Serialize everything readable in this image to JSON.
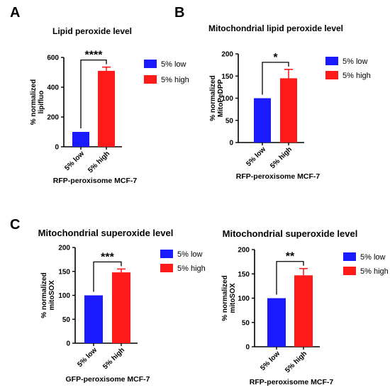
{
  "figure": {
    "panel_labels": [
      "A",
      "B",
      "C"
    ]
  },
  "chart_data": [
    {
      "type": "bar",
      "panel": "A",
      "title": "Lipid peroxide level",
      "ylabel_lines": [
        "% normalized",
        "lipifluo"
      ],
      "xlabel": "RFP-peroxisome MCF-7",
      "categories": [
        "5% low",
        "5% high"
      ],
      "values": [
        100,
        510
      ],
      "errors": [
        0,
        25
      ],
      "colors": [
        "#1a1aff",
        "#ff1a1a"
      ],
      "ylim": [
        0,
        600
      ],
      "yticks": [
        0,
        200,
        400,
        600
      ],
      "significance": "****",
      "legend": [
        "5% low",
        "5% high"
      ]
    },
    {
      "type": "bar",
      "panel": "B",
      "title": "Mitochondrial lipid peroxide level",
      "ylabel_lines": [
        "% normalized",
        "MitoPeDPP"
      ],
      "xlabel": "RFP-peroxisome MCF-7",
      "categories": [
        "5% low",
        "5% high"
      ],
      "values": [
        100,
        145
      ],
      "errors": [
        0,
        20
      ],
      "colors": [
        "#1a1aff",
        "#ff1a1a"
      ],
      "ylim": [
        0,
        200
      ],
      "yticks": [
        0,
        50,
        100,
        150,
        200
      ],
      "significance": "*",
      "legend": [
        "5% low",
        "5% high"
      ]
    },
    {
      "type": "bar",
      "panel": "C1",
      "title": "Mitochondrial superoxide level",
      "ylabel_lines": [
        "% normalized",
        "mitoSOX"
      ],
      "xlabel": "GFP-peroxisome MCF-7",
      "categories": [
        "5% low",
        "5% high"
      ],
      "values": [
        100,
        148
      ],
      "errors": [
        0,
        7
      ],
      "colors": [
        "#1a1aff",
        "#ff1a1a"
      ],
      "ylim": [
        0,
        200
      ],
      "yticks": [
        0,
        50,
        100,
        150,
        200
      ],
      "significance": "***",
      "legend": [
        "5% low",
        "5% high"
      ]
    },
    {
      "type": "bar",
      "panel": "C2",
      "title": "Mitochondrial superoxide level",
      "ylabel_lines": [
        "% normalized",
        "mitoSOX"
      ],
      "xlabel": "RFP-peroxisome MCF-7",
      "categories": [
        "5% low",
        "5% high"
      ],
      "values": [
        100,
        147
      ],
      "errors": [
        0,
        14
      ],
      "colors": [
        "#1a1aff",
        "#ff1a1a"
      ],
      "ylim": [
        0,
        200
      ],
      "yticks": [
        0,
        50,
        100,
        150,
        200
      ],
      "significance": "**",
      "legend": [
        "5% low",
        "5% high"
      ]
    }
  ]
}
